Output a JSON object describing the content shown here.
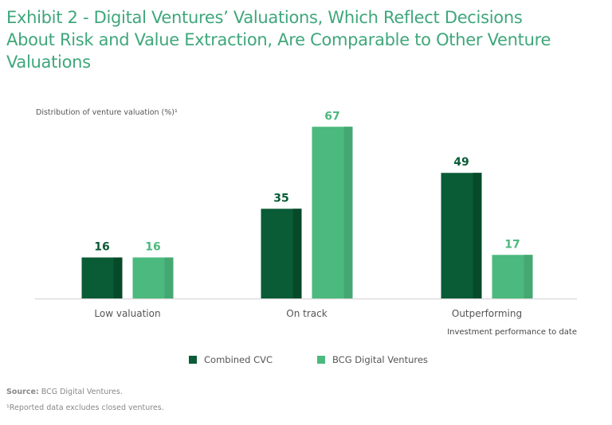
{
  "header": {
    "title": "Exhibit 2 - Digital Ventures’ Valuations, Which Reflect Decisions About Risk and Value Extraction, Are Comparable to Other Venture Valuations"
  },
  "colors": {
    "title": "#3fa77b",
    "combined_cvc": "#0a5c36",
    "combined_cvc_shade": "#064a2a",
    "bcg_digital_ventures": "#4cb97e",
    "bcg_digital_ventures_shade": "#45a872"
  },
  "chart_data": {
    "type": "bar",
    "title": "Distribution of venture valuation (%)¹",
    "ylabel": "Distribution of venture valuation (%)¹",
    "xlabel": "Investment performance to date",
    "categories": [
      "Low valuation",
      "On track",
      "Outperforming"
    ],
    "series": [
      {
        "name": "Combined CVC",
        "values": [
          16,
          35,
          49
        ]
      },
      {
        "name": "BCG Digital Ventures",
        "values": [
          16,
          67,
          17
        ]
      }
    ],
    "ylim": [
      0,
      70
    ],
    "grid": false,
    "legend": "bottom-center",
    "data_labels": true
  },
  "legend": {
    "items": [
      {
        "label": "Combined CVC"
      },
      {
        "label": "BCG Digital Ventures"
      }
    ]
  },
  "footer": {
    "source_label": "Source:",
    "source_text": " BCG Digital Ventures.",
    "footnote": "¹Reported data excludes closed ventures."
  }
}
